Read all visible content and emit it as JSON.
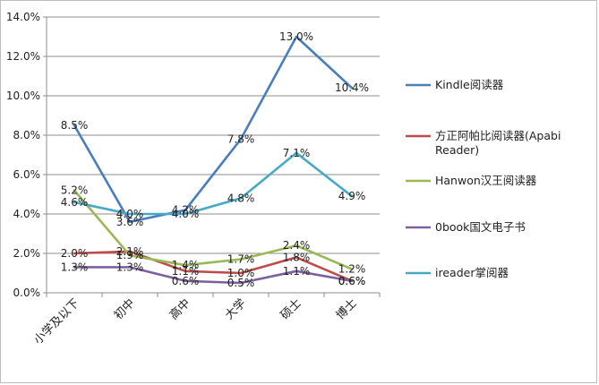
{
  "chart_data": {
    "type": "line",
    "categories": [
      "小学及以下",
      "初中",
      "高中",
      "大学",
      "硕士",
      "博士"
    ],
    "ylim": [
      0,
      14
    ],
    "yticks": [
      "0.0%",
      "2.0%",
      "4.0%",
      "6.0%",
      "8.0%",
      "10.0%",
      "12.0%",
      "14.0%"
    ],
    "grid": true,
    "legend_position": "right",
    "series": [
      {
        "name": "Kindle阅读器",
        "color": "#4a7ebb",
        "values": [
          8.5,
          3.6,
          4.2,
          7.8,
          13.0,
          10.4
        ],
        "labels": [
          "8.5%",
          "3.6%",
          "4.2%",
          "7.8%",
          "13.0%",
          "10.4%"
        ]
      },
      {
        "name": "方正阿帕比阅读器(Apabi Reader)",
        "color": "#be4b48",
        "values": [
          2.0,
          2.1,
          1.1,
          1.0,
          1.8,
          0.6
        ],
        "labels": [
          "2.0%",
          "2.1%",
          "1.1%",
          "1.0%",
          "1.8%",
          "0.6%"
        ]
      },
      {
        "name": "Hanwon汉王阅读器",
        "color": "#98b954",
        "values": [
          5.2,
          1.9,
          1.4,
          1.7,
          2.4,
          1.2
        ],
        "labels": [
          "5.2%",
          "1.9%",
          "1.4%",
          "1.7%",
          "2.4%",
          "1.2%"
        ]
      },
      {
        "name": "0book国文电子书",
        "color": "#7d60a0",
        "values": [
          1.3,
          1.3,
          0.6,
          0.5,
          1.1,
          0.6
        ],
        "labels": [
          "1.3%",
          "1.3%",
          "0.6%",
          "0.5%",
          "1.1%",
          "0.6%"
        ]
      },
      {
        "name": "ireader掌阅器",
        "color": "#46aac5",
        "values": [
          4.6,
          4.0,
          4.0,
          4.8,
          7.1,
          4.9
        ],
        "labels": [
          "4.6%",
          "4.0%",
          "4.0%",
          "4.8%",
          "7.1%",
          "4.9%"
        ]
      }
    ]
  }
}
